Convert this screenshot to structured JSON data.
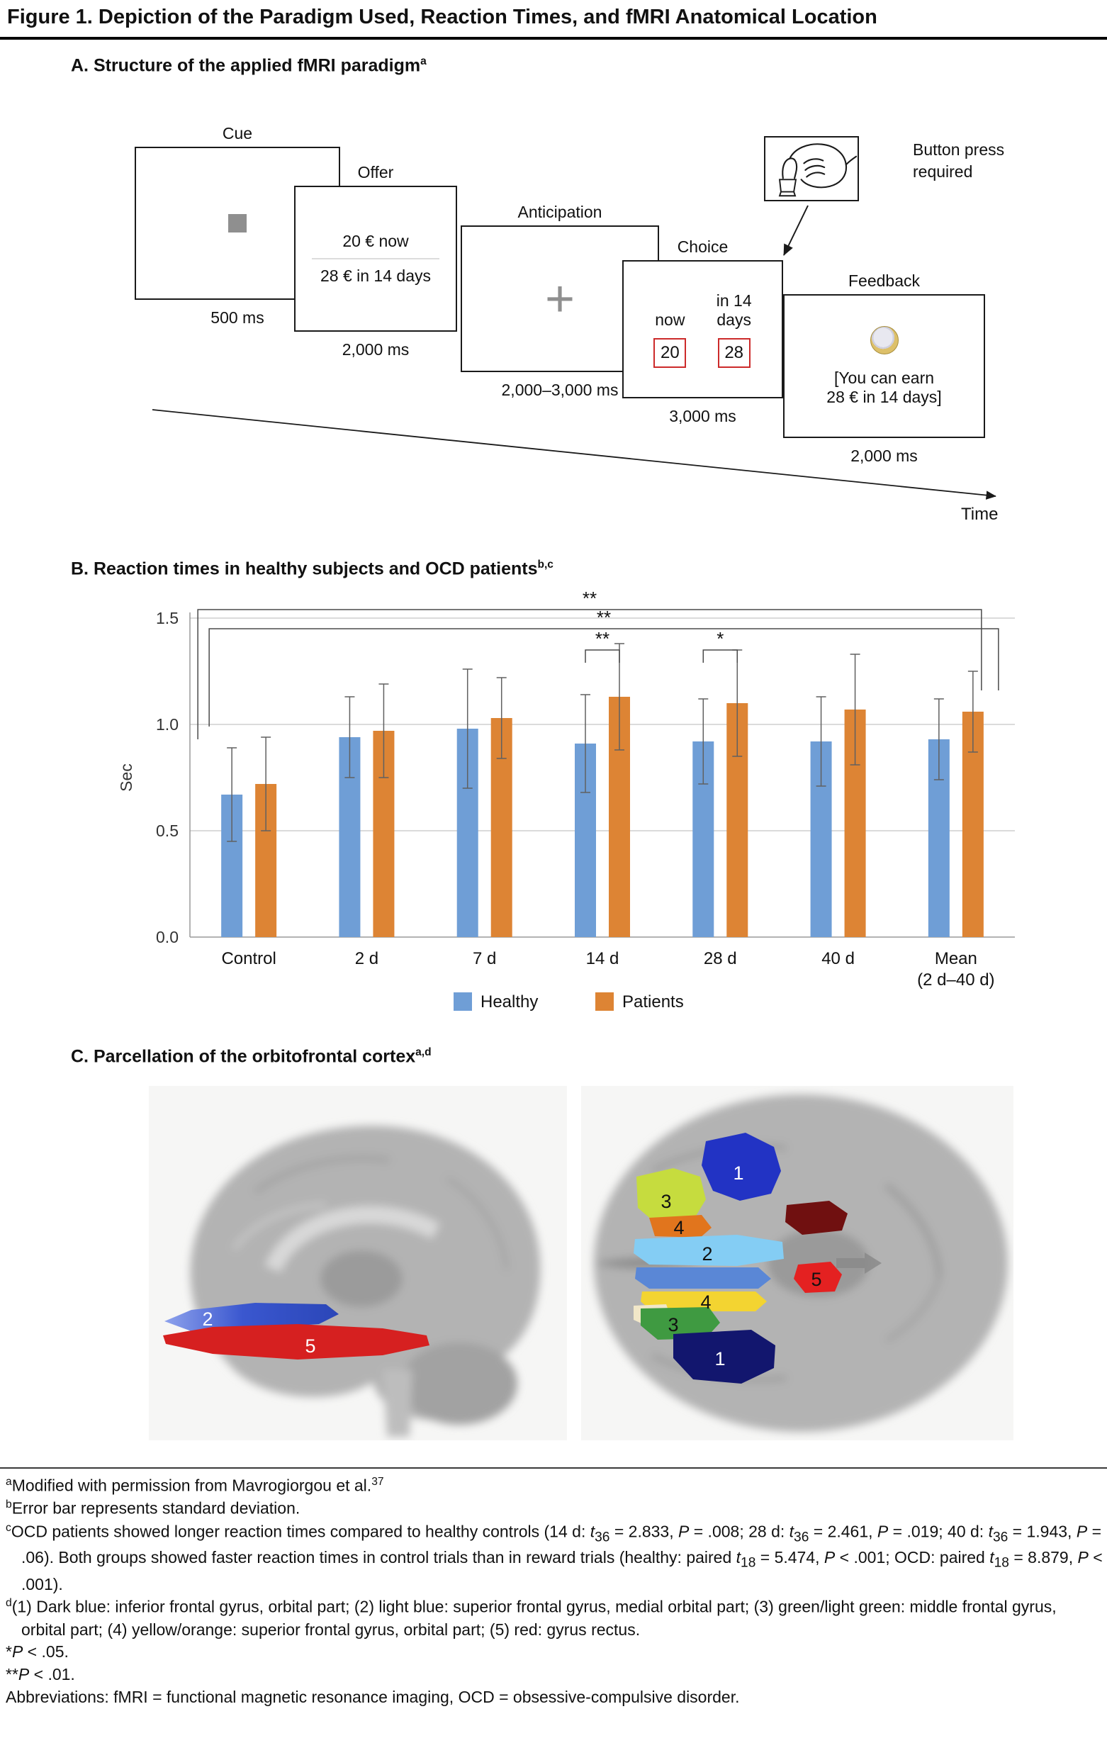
{
  "figure": {
    "title": "Figure 1. Depiction of the Paradigm Used, Reaction Times, and fMRI Anatomical Location"
  },
  "panelA": {
    "heading": "A. Structure of the applied fMRI paradigm",
    "heading_sup": "a",
    "stages": [
      {
        "label": "Cue",
        "duration": "500 ms"
      },
      {
        "label": "Offer",
        "duration": "2,000 ms",
        "line1": "20 € now",
        "line2": "28 € in 14 days"
      },
      {
        "label": "Anticipation",
        "duration": "2,000–3,000 ms",
        "fixation": "+"
      },
      {
        "label": "Choice",
        "duration": "3,000 ms",
        "option1_label": "now",
        "option1_value": "20",
        "option2_label": "in 14\ndays",
        "option2_value": "28"
      },
      {
        "label": "Feedback",
        "duration": "2,000 ms",
        "message": "[You can earn\n28 € in 14 days]"
      }
    ],
    "button_press_label": "Button press\nrequired",
    "time_label": "Time"
  },
  "panelB": {
    "heading": "B. Reaction times in healthy subjects and OCD patients",
    "heading_sup": "b,c"
  },
  "chart_data": {
    "type": "bar",
    "title": "Reaction times in healthy subjects and OCD patients",
    "categories": [
      "Control",
      "2 d",
      "7 d",
      "14 d",
      "28 d",
      "40 d",
      "Mean\n(2 d–40 d)"
    ],
    "series": [
      {
        "name": "Healthy",
        "color": "#6f9ed6",
        "values": [
          0.67,
          0.94,
          0.98,
          0.91,
          0.92,
          0.92,
          0.93
        ],
        "errors": [
          0.22,
          0.19,
          0.28,
          0.23,
          0.2,
          0.21,
          0.19
        ]
      },
      {
        "name": "Patients",
        "color": "#dd8434",
        "values": [
          0.72,
          0.97,
          1.03,
          1.13,
          1.1,
          1.07,
          1.06
        ],
        "errors": [
          0.22,
          0.22,
          0.19,
          0.25,
          0.25,
          0.26,
          0.19
        ]
      }
    ],
    "xlabel": "",
    "ylabel": "Sec",
    "ylim": [
      0,
      1.5
    ],
    "yticks": [
      0.0,
      0.5,
      1.0,
      1.5
    ],
    "grid": true,
    "legend_position": "bottom",
    "significance": [
      {
        "label": "**",
        "from_cat": 0,
        "from_series": 0,
        "from_dx": -48,
        "to_cat": 6,
        "to_series": 1,
        "to_dx": 12,
        "bar_y": 1.54,
        "from_drop_y": 0.93,
        "to_drop_y": 1.16
      },
      {
        "label": "**",
        "from_cat": 0,
        "from_series": 1,
        "from_dx": -80,
        "to_cat": 6,
        "to_series": 1,
        "to_dx": 36,
        "bar_y": 1.45,
        "from_drop_y": 0.99,
        "to_drop_y": 1.16
      },
      {
        "label": "**",
        "from_cat": 3,
        "from_series": 0,
        "from_dx": 0,
        "to_cat": 3,
        "to_series": 1,
        "to_dx": 0,
        "bar_y": 1.35,
        "from_drop_y": 1.29,
        "to_drop_y": 1.29
      },
      {
        "label": "*",
        "from_cat": 4,
        "from_series": 0,
        "from_dx": 0,
        "to_cat": 4,
        "to_series": 1,
        "to_dx": 0,
        "bar_y": 1.35,
        "from_drop_y": 1.29,
        "to_drop_y": 1.29
      }
    ]
  },
  "panelC": {
    "heading": "C. Parcellation of the orbitofrontal cortex",
    "heading_sup": "a,d",
    "sagittal_regions": [
      {
        "num": "2",
        "hex": "#3a57cf"
      },
      {
        "num": "5",
        "hex": "#d62020"
      }
    ],
    "axial_regions": [
      {
        "num": "1",
        "hex": "#2233c4"
      },
      {
        "num": "3",
        "hex": "#c6dc3e"
      },
      {
        "num": "4",
        "hex": "#e1751d"
      },
      {
        "num": "2",
        "hex": "#84cdf4"
      },
      {
        "num": "5",
        "hex": "#e42121"
      },
      {
        "num": "4",
        "hex": "#f3d431"
      },
      {
        "num": "3",
        "hex": "#3f9a41"
      },
      {
        "num": "1",
        "hex": "#12166e"
      }
    ]
  },
  "footnotes": [
    {
      "marker": "a",
      "hang": false,
      "text": "Modified with permission from Mavrogiorgou et al.^{37}"
    },
    {
      "marker": "b",
      "hang": false,
      "text": "Error bar represents standard deviation."
    },
    {
      "marker": "c",
      "hang": true,
      "text": "OCD patients showed longer reaction times compared to healthy controls (14 d: {i}t{/i}_{36} = 2.833, {i}P{/i} = .008; 28 d: {i}t{/i}_{36} = 2.461, {i}P{/i} = .019; 40 d: {i}t{/i}_{36} = 1.943, {i}P{/i} = .06). Both groups showed faster reaction times in control trials than in reward trials (healthy: paired {i}t{/i}_{18} = 5.474, {i}P{/i} < .001; OCD: paired {i}t{/i}_{18} = 8.879, {i}P{/i} < .001)."
    },
    {
      "marker": "d",
      "hang": true,
      "text": "(1) Dark blue: inferior frontal gyrus, orbital part; (2) light blue: superior frontal gyrus, medial orbital part; (3) green/light green: middle frontal gyrus, orbital part; (4) yellow/orange: superior frontal gyrus, orbital part; (5) red: gyrus rectus."
    },
    {
      "marker": "*",
      "hang": false,
      "text": "{i}P{/i} < .05."
    },
    {
      "marker": "**",
      "hang": false,
      "text": "{i}P{/i} < .01."
    },
    {
      "marker": "",
      "hang": false,
      "text": "Abbreviations: fMRI = functional magnetic resonance imaging, OCD = obsessive-compulsive disorder."
    }
  ]
}
